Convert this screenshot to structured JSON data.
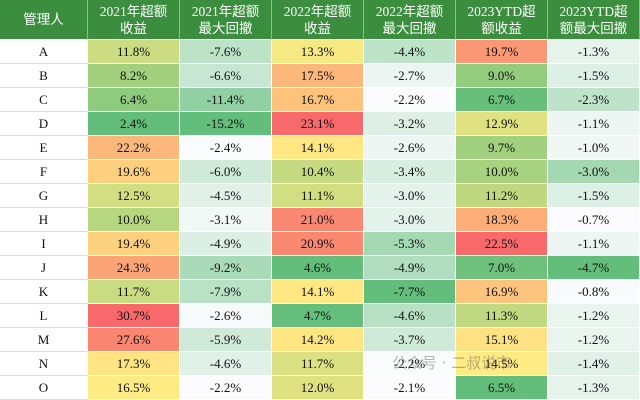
{
  "table": {
    "header": [
      "管理人",
      [
        "2021年超额",
        "收益"
      ],
      [
        "2021年超额",
        "最大回撤"
      ],
      [
        "2022年超额",
        "收益"
      ],
      [
        "2022年超额",
        "最大回撤"
      ],
      [
        "2023YTD超",
        "额收益"
      ],
      [
        "2023YTD超",
        "额最大回撤"
      ]
    ],
    "column_kinds": [
      "name",
      "return",
      "drawdown",
      "return",
      "drawdown",
      "return",
      "drawdown"
    ],
    "rows": [
      [
        "A",
        "11.8%",
        "-7.6%",
        "13.3%",
        "-4.4%",
        "19.7%",
        "-1.3%"
      ],
      [
        "B",
        "8.2%",
        "-6.6%",
        "17.5%",
        "-2.7%",
        "9.0%",
        "-1.5%"
      ],
      [
        "C",
        "6.4%",
        "-11.4%",
        "16.7%",
        "-2.2%",
        "6.7%",
        "-2.3%"
      ],
      [
        "D",
        "2.4%",
        "-15.2%",
        "23.1%",
        "-3.2%",
        "12.9%",
        "-1.1%"
      ],
      [
        "E",
        "22.2%",
        "-2.4%",
        "14.1%",
        "-2.6%",
        "9.7%",
        "-1.0%"
      ],
      [
        "F",
        "19.6%",
        "-6.0%",
        "10.4%",
        "-3.4%",
        "10.0%",
        "-3.0%"
      ],
      [
        "G",
        "12.5%",
        "-4.5%",
        "11.1%",
        "-3.0%",
        "11.2%",
        "-1.5%"
      ],
      [
        "H",
        "10.0%",
        "-3.1%",
        "21.0%",
        "-3.0%",
        "18.3%",
        "-0.7%"
      ],
      [
        "I",
        "19.4%",
        "-4.9%",
        "20.9%",
        "-5.3%",
        "22.5%",
        "-1.1%"
      ],
      [
        "J",
        "24.3%",
        "-9.2%",
        "4.6%",
        "-4.9%",
        "7.0%",
        "-4.7%"
      ],
      [
        "K",
        "11.7%",
        "-7.9%",
        "14.1%",
        "-7.7%",
        "16.9%",
        "-0.8%"
      ],
      [
        "L",
        "30.7%",
        "-2.6%",
        "4.7%",
        "-4.6%",
        "11.3%",
        "-1.2%"
      ],
      [
        "M",
        "27.6%",
        "-5.9%",
        "14.2%",
        "-3.7%",
        "15.1%",
        "-1.2%"
      ],
      [
        "N",
        "17.3%",
        "-4.6%",
        "11.7%",
        "-2.2%",
        "14.5%",
        "-1.4%"
      ],
      [
        "O",
        "16.5%",
        "-2.2%",
        "12.0%",
        "-2.1%",
        "6.5%",
        "-1.3%"
      ]
    ]
  },
  "watermark": "公众号 · 二叔说市"
}
